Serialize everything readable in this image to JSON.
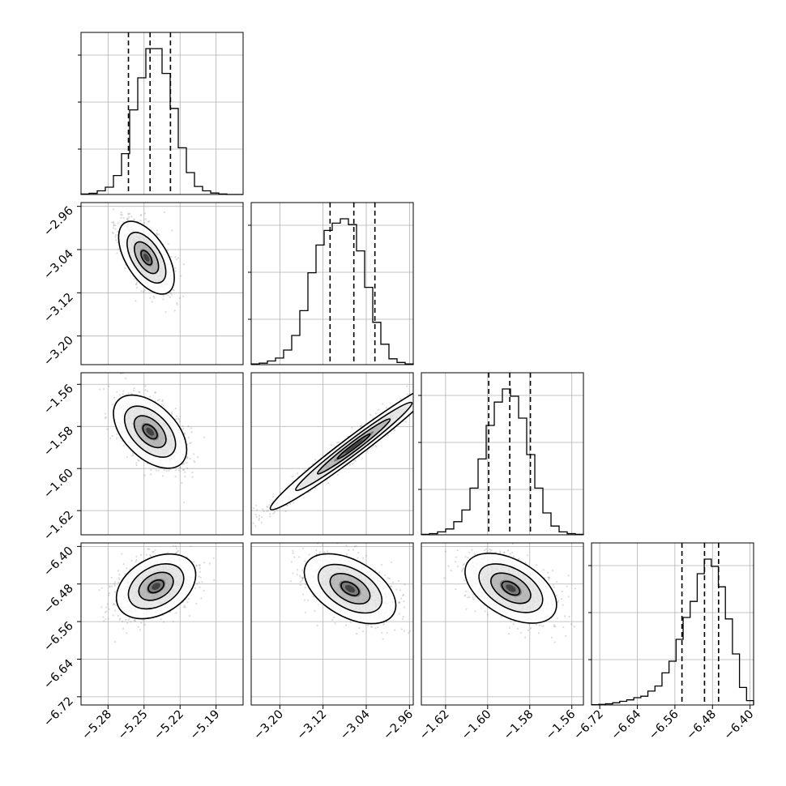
{
  "chart_data": {
    "type": "corner",
    "title": "",
    "parameters": [
      "",
      "",
      "",
      ""
    ],
    "ranges": [
      [
        -5.3025,
        -5.1675
      ],
      [
        -3.253,
        -2.953
      ],
      [
        -1.6315,
        -1.5545
      ],
      [
        -6.7375,
        -6.3925
      ]
    ],
    "ticks": [
      {
        "values": [
          -5.28,
          -5.25,
          -5.22,
          -5.19
        ],
        "labels": [
          "−5.28",
          "−5.25",
          "−5.22",
          "−5.19"
        ]
      },
      {
        "values": [
          -3.2,
          -3.12,
          -3.04,
          -2.96
        ],
        "labels": [
          "−3.20",
          "−3.12",
          "−3.04",
          "−2.96"
        ]
      },
      {
        "values": [
          -1.62,
          -1.6,
          -1.58,
          -1.56
        ],
        "labels": [
          "−1.62",
          "−1.60",
          "−1.58",
          "−1.56"
        ]
      },
      {
        "values": [
          -6.72,
          -6.64,
          -6.56,
          -6.48,
          -6.4
        ],
        "labels": [
          "−6.72",
          "−6.64",
          "−6.56",
          "−6.48",
          "−6.40"
        ]
      }
    ],
    "histograms": [
      {
        "edges_range": [
          -5.3025,
          -5.1675
        ],
        "counts": [
          0.3,
          0.8,
          2.5,
          5.0,
          13,
          28,
          58,
          80,
          100,
          100,
          83,
          59,
          32,
          15,
          5.5,
          2.5,
          1.0,
          0.3,
          0,
          0
        ],
        "quantiles": [
          -5.263,
          -5.245,
          -5.228
        ]
      },
      {
        "edges_range": [
          -3.253,
          -2.953
        ],
        "counts": [
          0.5,
          1.0,
          2.5,
          4.5,
          10,
          20,
          37,
          63,
          82,
          92,
          97,
          100,
          96,
          78,
          53,
          29,
          14,
          4.0,
          1.5,
          0.5
        ],
        "quantiles": [
          -3.107,
          -3.063,
          -3.024
        ]
      },
      {
        "edges_range": [
          -1.6315,
          -1.5545
        ],
        "counts": [
          0.3,
          0.8,
          2.0,
          4.0,
          9.0,
          17,
          32,
          52,
          75,
          91,
          100,
          95,
          80,
          55,
          32,
          15,
          6.0,
          2.0,
          0.8,
          0.3
        ],
        "quantiles": [
          -1.5995,
          -1.5895,
          -1.5797
        ]
      },
      {
        "edges_range": [
          -6.7375,
          -6.3925
        ],
        "counts": [
          0.2,
          0.4,
          0.8,
          1.5,
          2.5,
          3.5,
          5.0,
          6.0,
          9.5,
          13,
          22,
          30,
          45,
          60,
          71,
          90,
          100,
          95,
          81,
          59,
          35,
          12,
          3.0
        ],
        "quantiles": [
          -6.545,
          -6.497,
          -6.467
        ]
      }
    ],
    "contour_peaks": [
      {
        "pair": [
          0,
          1
        ],
        "x": -5.248,
        "y": -3.055
      },
      {
        "pair": [
          0,
          2
        ],
        "x": -5.245,
        "y": -1.5825
      },
      {
        "pair": [
          1,
          2
        ],
        "x": -3.063,
        "y": -1.5895
      },
      {
        "pair": [
          0,
          3
        ],
        "x": -5.24,
        "y": -6.485
      },
      {
        "pair": [
          1,
          3
        ],
        "x": -3.07,
        "y": -6.49
      },
      {
        "pair": [
          2,
          3
        ],
        "x": -1.589,
        "y": -6.489
      }
    ],
    "grid": true,
    "legend": "none"
  }
}
